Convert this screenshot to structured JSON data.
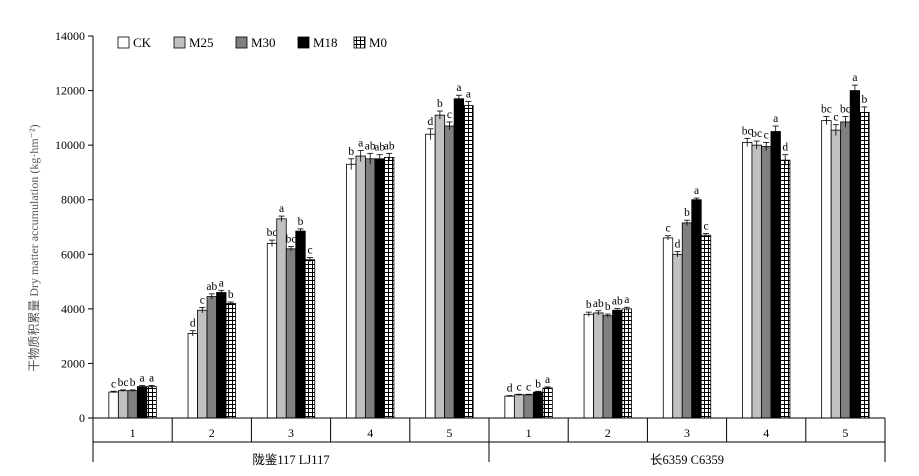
{
  "chart_data": {
    "type": "bar",
    "ylabel": "干物质积累量 Dry matter accumulation (kg·hm⁻²)",
    "ylim": [
      0,
      14000
    ],
    "yticks": [
      0,
      2000,
      4000,
      6000,
      8000,
      10000,
      12000,
      14000
    ],
    "legend_position": "top-left",
    "series_names": [
      "CK",
      "M25",
      "M30",
      "M18",
      "M0"
    ],
    "series_fills": [
      "#ffffff",
      "#c0c0c0",
      "#808080",
      "#000000",
      "grid"
    ],
    "groups": [
      {
        "name": "陇鉴117 LJ117",
        "categories": [
          "1",
          "2",
          "3",
          "4",
          "5"
        ],
        "values": [
          [
            950,
            1000,
            1000,
            1150,
            1150
          ],
          [
            3100,
            3950,
            4450,
            4600,
            4200
          ],
          [
            6400,
            7300,
            6200,
            6850,
            5800
          ],
          [
            9300,
            9600,
            9500,
            9500,
            9550
          ],
          [
            10400,
            11100,
            10700,
            11700,
            11450
          ]
        ],
        "errors": [
          [
            30,
            30,
            30,
            40,
            40
          ],
          [
            100,
            100,
            100,
            80,
            50
          ],
          [
            120,
            100,
            80,
            80,
            80
          ],
          [
            200,
            200,
            200,
            150,
            150
          ],
          [
            200,
            150,
            150,
            130,
            150
          ]
        ],
        "labels": [
          [
            "c",
            "bc",
            "b",
            "a",
            "a"
          ],
          [
            "d",
            "c",
            "ab",
            "a",
            "b"
          ],
          [
            "bc",
            "a",
            "bc",
            "b",
            "c"
          ],
          [
            "b",
            "a",
            "ab",
            "ab",
            "ab"
          ],
          [
            "d",
            "b",
            "c",
            "a",
            "a"
          ]
        ]
      },
      {
        "name": "长6359 C6359",
        "categories": [
          "1",
          "2",
          "3",
          "4",
          "5"
        ],
        "values": [
          [
            800,
            850,
            850,
            950,
            1100
          ],
          [
            3800,
            3850,
            3750,
            3950,
            4000
          ],
          [
            6600,
            6000,
            7150,
            8000,
            6700
          ],
          [
            10100,
            10000,
            9950,
            10500,
            9450
          ],
          [
            10900,
            10550,
            10850,
            12000,
            11200
          ]
        ],
        "errors": [
          [
            20,
            20,
            20,
            30,
            40
          ],
          [
            80,
            80,
            60,
            60,
            60
          ],
          [
            80,
            100,
            100,
            60,
            60
          ],
          [
            150,
            150,
            150,
            200,
            200
          ],
          [
            150,
            200,
            200,
            200,
            200
          ]
        ],
        "labels": [
          [
            "d",
            "c",
            "c",
            "b",
            "a"
          ],
          [
            "b",
            "ab",
            "b",
            "ab",
            "a"
          ],
          [
            "c",
            "d",
            "b",
            "a",
            "c"
          ],
          [
            "bc",
            "bc",
            "c",
            "a",
            "d"
          ],
          [
            "bc",
            "c",
            "bc",
            "a",
            "b"
          ]
        ]
      }
    ]
  }
}
